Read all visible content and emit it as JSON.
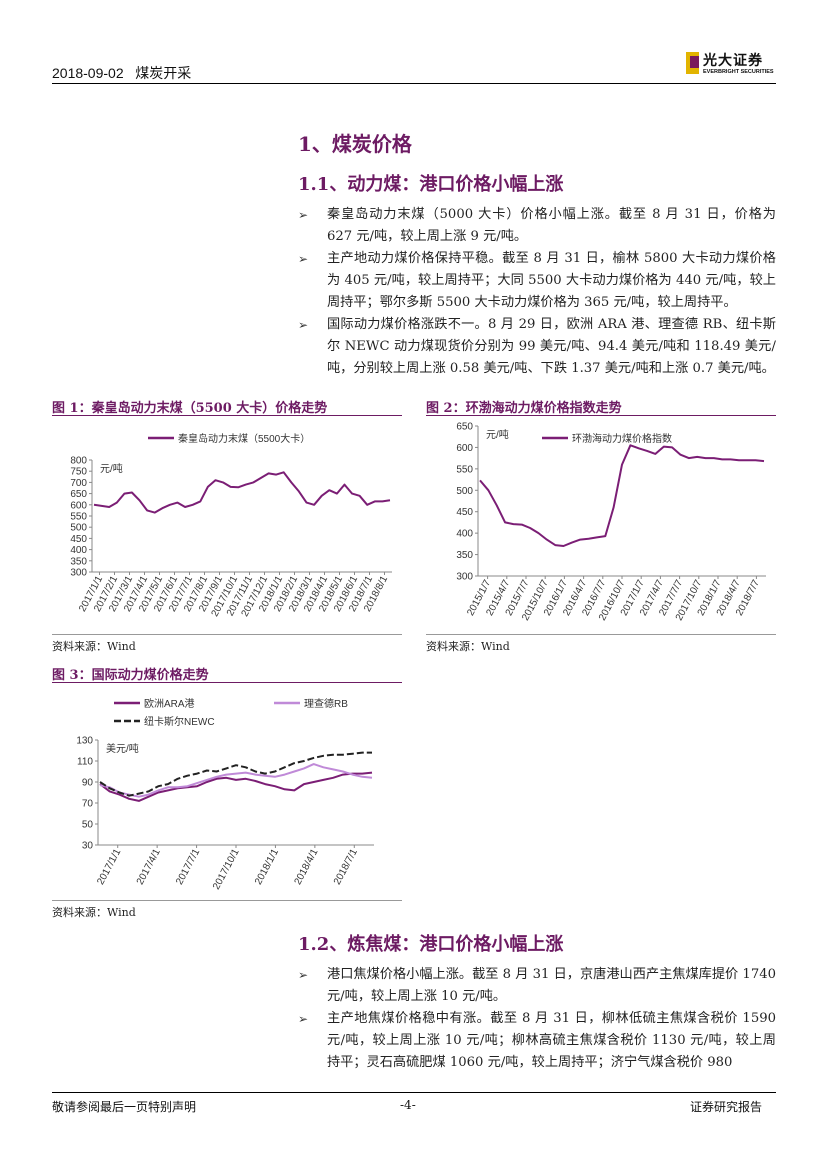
{
  "header": {
    "date": "2018-09-02",
    "category": "煤炭开采",
    "logo_cn": "光大证券",
    "logo_en": "EVERBRIGHT SECURITIES"
  },
  "sections": {
    "s1": "1、煤炭价格",
    "s11": "1.1、动力煤：港口价格小幅上涨",
    "s12": "1.2、炼焦煤：港口价格小幅上涨"
  },
  "bullets_1": [
    "秦皇岛动力末煤（5000 大卡）价格小幅上涨。截至 8 月 31 日，价格为 627 元/吨，较上周上涨 9 元/吨。",
    "主产地动力煤价格保持平稳。截至 8 月 31 日，榆林 5800 大卡动力煤价格为 405 元/吨，较上周持平；大同 5500 大卡动力煤价格为 440 元/吨，较上周持平；鄂尔多斯 5500 大卡动力煤价格为 365 元/吨，较上周持平。",
    "国际动力煤价格涨跌不一。8 月 29 日，欧洲 ARA 港、理查德 RB、纽卡斯尔 NEWC 动力煤现货价分别为 99 美元/吨、94.4 美元/吨和 118.49 美元/吨，分别较上周上涨 0.58 美元/吨、下跌 1.37 美元/吨和上涨 0.7 美元/吨。"
  ],
  "bullets_2": [
    "港口焦煤价格小幅上涨。截至 8 月 31 日，京唐港山西产主焦煤库提价 1740 元/吨，较上周上涨 10 元/吨。",
    "主产地焦煤价格稳中有涨。截至 8 月 31 日，柳林低硫主焦煤含税价 1590 元/吨，较上周上涨 10 元/吨；柳林高硫主焦煤含税价 1130 元/吨，较上周持平；灵石高硫肥煤 1060 元/吨，较上周持平；济宁气煤含税价 980"
  ],
  "figures": {
    "fig1_title": "图 1：秦皇岛动力末煤（5500 大卡）价格走势",
    "fig2_title": "图 2：环渤海动力煤价格指数走势",
    "fig3_title": "图 3：国际动力煤价格走势",
    "source": "资料来源：Wind"
  },
  "footer": {
    "left": "敬请参阅最后一页特别声明",
    "page": "-4-",
    "right": "证券研究报告"
  },
  "chart_data": [
    {
      "type": "line",
      "unit_label": "元/吨",
      "ylim": [
        300,
        800
      ],
      "yticks": [
        300,
        350,
        400,
        450,
        500,
        550,
        600,
        650,
        700,
        750,
        800
      ],
      "xticks": [
        "2017/1/1",
        "2017/2/1",
        "2017/3/1",
        "2017/4/1",
        "2017/5/1",
        "2017/6/1",
        "2017/7/1",
        "2017/8/1",
        "2017/9/1",
        "2017/10/1",
        "2017/11/1",
        "2017/12/1",
        "2018/1/1",
        "2018/2/1",
        "2018/3/1",
        "2018/4/1",
        "2018/5/1",
        "2018/6/1",
        "2018/7/1",
        "2018/8/1"
      ],
      "legend": "top",
      "color": "#7b1e75",
      "series": [
        {
          "name": "秦皇岛动力末煤（5500大卡）",
          "values": [
            600,
            595,
            590,
            610,
            650,
            655,
            620,
            575,
            565,
            585,
            600,
            610,
            590,
            600,
            615,
            680,
            710,
            700,
            680,
            678,
            690,
            700,
            720,
            740,
            735,
            745,
            700,
            660,
            610,
            600,
            640,
            665,
            650,
            690,
            650,
            640,
            600,
            615,
            615,
            620
          ]
        }
      ]
    },
    {
      "type": "line",
      "unit_label": "元/吨",
      "ylim": [
        300,
        650
      ],
      "yticks": [
        300,
        350,
        400,
        450,
        500,
        550,
        600,
        650
      ],
      "xticks": [
        "2015/1/7",
        "2015/4/7",
        "2015/7/7",
        "2015/10/7",
        "2016/1/7",
        "2016/4/7",
        "2016/7/7",
        "2016/10/7",
        "2017/1/7",
        "2017/4/7",
        "2017/7/7",
        "2017/10/7",
        "2018/1/7",
        "2018/4/7",
        "2018/7/7"
      ],
      "legend": "top",
      "color": "#7b1e75",
      "series": [
        {
          "name": "环渤海动力煤价格指数",
          "values": [
            523,
            500,
            465,
            425,
            421,
            420,
            412,
            400,
            385,
            372,
            370,
            378,
            385,
            387,
            390,
            393,
            460,
            560,
            605,
            598,
            592,
            585,
            602,
            600,
            583,
            575,
            578,
            575,
            575,
            572,
            572,
            570,
            570,
            570,
            568
          ]
        }
      ]
    },
    {
      "type": "line",
      "unit_label": "美元/吨",
      "ylim": [
        30,
        130
      ],
      "yticks": [
        30,
        50,
        70,
        90,
        110,
        130
      ],
      "xticks": [
        "2017/1/1",
        "2017/4/1",
        "2017/7/1",
        "2017/10/1",
        "2018/1/1",
        "2018/4/1",
        "2018/7/1"
      ],
      "legend": "top",
      "series": [
        {
          "name": "欧洲ARA港",
          "color": "#7b1e75",
          "values": [
            88,
            81,
            78,
            74,
            72,
            76,
            80,
            82,
            84,
            85,
            86,
            90,
            93,
            94,
            92,
            93,
            91,
            88,
            86,
            83,
            82,
            88,
            90,
            92,
            94,
            97,
            98,
            98,
            99
          ]
        },
        {
          "name": "理查德RB",
          "color": "#c08ad8",
          "values": [
            87,
            85,
            80,
            78,
            76,
            78,
            82,
            85,
            85,
            86,
            89,
            92,
            95,
            97,
            98,
            99,
            97,
            96,
            95,
            97,
            100,
            103,
            107,
            104,
            102,
            100,
            97,
            95,
            94
          ]
        },
        {
          "name": "纽卡斯尔NEWC",
          "color": "#222222",
          "dash": true,
          "values": [
            90,
            84,
            80,
            77,
            79,
            81,
            86,
            88,
            93,
            96,
            98,
            101,
            100,
            103,
            106,
            104,
            100,
            98,
            100,
            104,
            108,
            110,
            113,
            115,
            116,
            116,
            117,
            118,
            118
          ]
        }
      ]
    }
  ]
}
